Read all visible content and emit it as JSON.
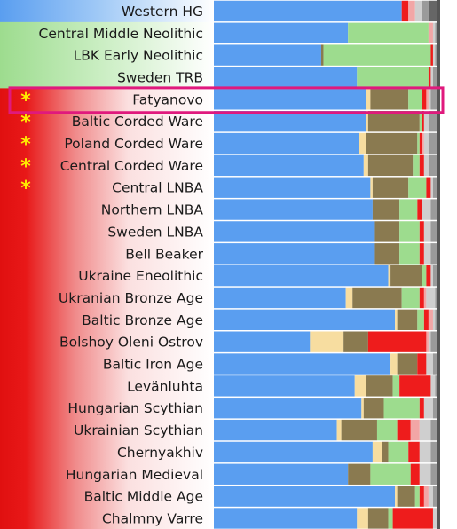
{
  "colors": {
    "blue": "#5a9ef0",
    "green": "#9ddc8e",
    "tan": "#f7dda0",
    "brown": "#8a7a50",
    "red": "#ee1c1c",
    "pink": "#f2a6a6",
    "light_gray": "#cfcfcf",
    "gray": "#9a9a9a",
    "dark_gray": "#666666",
    "highlight": "#e0197d",
    "star": "#ffee00"
  },
  "chart_data": {
    "type": "bar",
    "orientation": "horizontal",
    "stacked": true,
    "normalized": true,
    "title": "",
    "xlabel": "",
    "ylabel": "",
    "xlim": [
      0,
      1
    ],
    "legend": "none",
    "highlighted_category": "Fatyanovo",
    "categories": [
      "Western HG",
      "Central Middle Neolithic",
      "LBK Early Neolithic",
      "Sweden TRB",
      "Fatyanovo",
      "Baltic Corded Ware",
      "Poland Corded Ware",
      "Central Corded Ware",
      "Central LNBA",
      "Northern LNBA",
      "Sweden LNBA",
      "Bell Beaker",
      "Ukraine Eneolithic",
      "Ukranian Bronze Age",
      "Baltic Bronze Age",
      "Bolshoy Oleni Ostrov",
      "Baltic Iron Age",
      "Levänluhta",
      "Hungarian Scythian",
      "Ukrainian Scythian",
      "Chernyakhiv",
      "Hungarian Medieval",
      "Baltic Middle Age",
      "Chalmny Varre"
    ],
    "category_group_colors": [
      "blue",
      "green",
      "green",
      "green",
      "red",
      "red",
      "red",
      "red",
      "red",
      "red",
      "red",
      "red",
      "red",
      "red",
      "red",
      "red",
      "red",
      "red",
      "red",
      "red",
      "red",
      "red",
      "red",
      "red"
    ],
    "starred": [
      false,
      false,
      false,
      false,
      true,
      true,
      true,
      true,
      true,
      false,
      false,
      false,
      false,
      false,
      false,
      false,
      false,
      false,
      false,
      false,
      false,
      false,
      false,
      false
    ],
    "series": [
      {
        "color": "blue",
        "values": [
          0.84,
          0.6,
          0.48,
          0.64,
          0.68,
          0.68,
          0.65,
          0.67,
          0.7,
          0.71,
          0.72,
          0.72,
          0.78,
          0.59,
          0.81,
          0.43,
          0.79,
          0.63,
          0.66,
          0.55,
          0.71,
          0.6,
          0.81,
          0.64
        ]
      },
      {
        "color": "tan",
        "values": [
          0.0,
          0.0,
          0.0,
          0.0,
          0.02,
          0.01,
          0.03,
          0.02,
          0.01,
          0.0,
          0.0,
          0.0,
          0.01,
          0.03,
          0.01,
          0.15,
          0.03,
          0.05,
          0.01,
          0.02,
          0.04,
          0.0,
          0.01,
          0.05
        ]
      },
      {
        "color": "brown",
        "values": [
          0.0,
          0.0,
          0.01,
          0.0,
          0.17,
          0.23,
          0.23,
          0.2,
          0.16,
          0.12,
          0.11,
          0.11,
          0.14,
          0.22,
          0.09,
          0.11,
          0.09,
          0.12,
          0.09,
          0.16,
          0.03,
          0.1,
          0.08,
          0.09
        ]
      },
      {
        "color": "green",
        "values": [
          0.0,
          0.36,
          0.48,
          0.32,
          0.06,
          0.01,
          0.01,
          0.03,
          0.08,
          0.08,
          0.09,
          0.09,
          0.02,
          0.08,
          0.03,
          0.0,
          0.0,
          0.03,
          0.16,
          0.09,
          0.09,
          0.18,
          0.02,
          0.02
        ]
      },
      {
        "color": "red",
        "values": [
          0.03,
          0.0,
          0.01,
          0.01,
          0.02,
          0.01,
          0.01,
          0.02,
          0.02,
          0.02,
          0.02,
          0.02,
          0.02,
          0.02,
          0.02,
          0.26,
          0.04,
          0.14,
          0.02,
          0.06,
          0.05,
          0.04,
          0.02,
          0.18
        ]
      },
      {
        "color": "pink",
        "values": [
          0.03,
          0.02,
          0.0,
          0.0,
          0.01,
          0.0,
          0.01,
          0.0,
          0.0,
          0.0,
          0.0,
          0.0,
          0.0,
          0.01,
          0.02,
          0.01,
          0.0,
          0.0,
          0.0,
          0.04,
          0.0,
          0.0,
          0.02,
          0.0
        ]
      },
      {
        "color": "light_gray",
        "values": [
          0.03,
          0.01,
          0.01,
          0.01,
          0.01,
          0.02,
          0.02,
          0.02,
          0.01,
          0.04,
          0.03,
          0.03,
          0.01,
          0.04,
          0.01,
          0.01,
          0.03,
          0.02,
          0.04,
          0.05,
          0.05,
          0.05,
          0.02,
          0.02
        ]
      },
      {
        "color": "gray",
        "values": [
          0.03,
          0.01,
          0.01,
          0.02,
          0.03,
          0.04,
          0.04,
          0.04,
          0.02,
          0.03,
          0.03,
          0.03,
          0.02,
          0.01,
          0.01,
          0.03,
          0.02,
          0.01,
          0.02,
          0.03,
          0.03,
          0.03,
          0.02,
          0.0
        ]
      },
      {
        "color": "dark_gray",
        "values": [
          0.04,
          0.0,
          0.0,
          0.0,
          0.0,
          0.0,
          0.0,
          0.0,
          0.0,
          0.0,
          0.0,
          0.0,
          0.0,
          0.0,
          0.0,
          0.0,
          0.0,
          0.0,
          0.0,
          0.0,
          0.0,
          0.0,
          0.0,
          0.0
        ]
      }
    ]
  }
}
